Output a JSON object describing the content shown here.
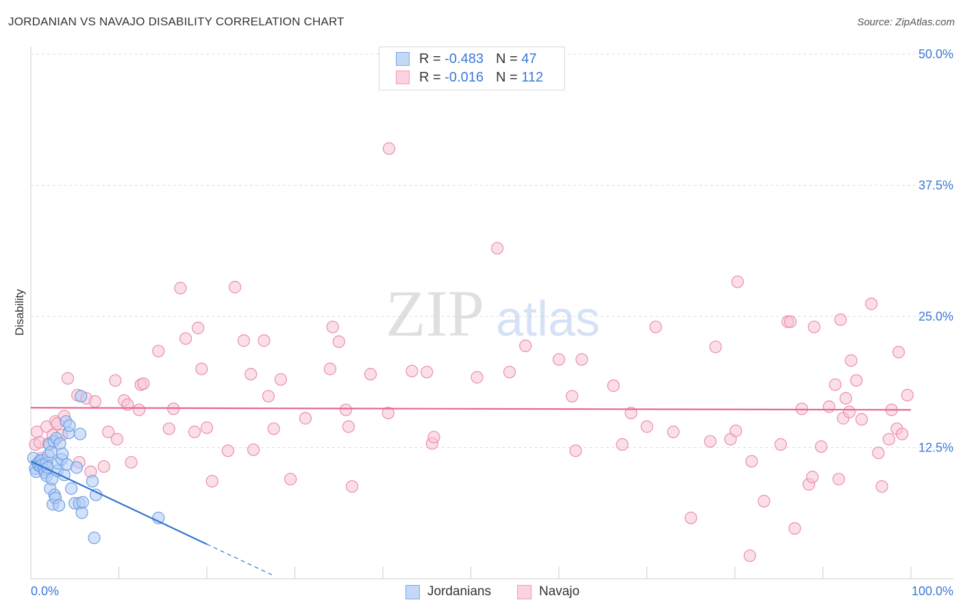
{
  "header": {
    "title": "JORDANIAN VS NAVAJO DISABILITY CORRELATION CHART",
    "source": "Source: ZipAtlas.com"
  },
  "legend": {
    "rows": [
      {
        "r_label": "R =",
        "r_value": "-0.483",
        "n_label": "N =",
        "n_value": "47",
        "color": "#8ab4f0"
      },
      {
        "r_label": "R =",
        "r_value": "-0.016",
        "n_label": "N =",
        "n_value": "112",
        "color": "#f4a6c0"
      }
    ]
  },
  "bottom_legend": {
    "items": [
      {
        "label": "Jordanians",
        "color": "#8ab4f0"
      },
      {
        "label": "Navajo",
        "color": "#f4a6c0"
      }
    ]
  },
  "watermark": {
    "zip": "ZIP",
    "atlas": "atlas"
  },
  "colors": {
    "blue_fill": "#aecbf5",
    "blue_stroke": "#6f9fe0",
    "blue_line": "#2e72d2",
    "pink_fill": "#f8c4d5",
    "pink_stroke": "#eb8cab",
    "pink_line": "#e8648e",
    "axis_label": "#3a78d8",
    "grid": "#dddddd"
  },
  "chart_data": {
    "type": "scatter",
    "title": "JORDANIAN VS NAVAJO DISABILITY CORRELATION CHART",
    "xlabel": "",
    "ylabel": "Disability",
    "xlim": [
      0,
      100
    ],
    "ylim": [
      0,
      50
    ],
    "x_tick_labels": [
      "0.0%",
      "100.0%"
    ],
    "y_tick_labels": [
      "12.5%",
      "25.0%",
      "37.5%",
      "50.0%"
    ],
    "y_ticks": [
      12.5,
      25.0,
      37.5,
      50.0
    ],
    "grid": true,
    "legend_position": "top-center",
    "series": [
      {
        "name": "Jordanians",
        "r": -0.483,
        "n": 47,
        "trend": {
          "x0": 0,
          "y0": 11.2,
          "x1": 20,
          "y1": 3.3,
          "dash_to_x": 27.5
        },
        "points": [
          [
            0.3,
            11.5
          ],
          [
            0.5,
            10.5
          ],
          [
            0.6,
            10.2
          ],
          [
            0.8,
            11.0
          ],
          [
            0.9,
            10.8
          ],
          [
            1.0,
            11.2
          ],
          [
            1.1,
            10.7
          ],
          [
            1.2,
            11.3
          ],
          [
            1.3,
            10.9
          ],
          [
            1.5,
            10.4
          ],
          [
            1.6,
            10.1
          ],
          [
            1.7,
            11.0
          ],
          [
            1.8,
            9.8
          ],
          [
            1.9,
            10.6
          ],
          [
            2.0,
            11.8
          ],
          [
            2.1,
            12.8
          ],
          [
            2.2,
            8.6
          ],
          [
            2.3,
            12.1
          ],
          [
            2.4,
            9.5
          ],
          [
            2.5,
            7.1
          ],
          [
            2.6,
            13.1
          ],
          [
            2.7,
            8.0
          ],
          [
            2.8,
            7.7
          ],
          [
            2.9,
            13.4
          ],
          [
            3.0,
            10.3
          ],
          [
            3.1,
            11.0
          ],
          [
            3.2,
            7.0
          ],
          [
            3.3,
            12.9
          ],
          [
            3.5,
            11.4
          ],
          [
            3.6,
            11.9
          ],
          [
            3.8,
            9.9
          ],
          [
            4.0,
            15.0
          ],
          [
            4.1,
            10.9
          ],
          [
            4.3,
            13.9
          ],
          [
            4.4,
            14.6
          ],
          [
            4.6,
            8.6
          ],
          [
            5.0,
            7.2
          ],
          [
            5.2,
            10.6
          ],
          [
            5.5,
            7.2
          ],
          [
            5.6,
            13.8
          ],
          [
            5.7,
            17.4
          ],
          [
            5.8,
            6.3
          ],
          [
            5.9,
            7.3
          ],
          [
            7.0,
            9.3
          ],
          [
            7.2,
            3.9
          ],
          [
            7.4,
            8.0
          ],
          [
            14.5,
            5.8
          ]
        ]
      },
      {
        "name": "Navajo",
        "r": -0.016,
        "n": 112,
        "trend": {
          "x0": 0,
          "y0": 16.3,
          "x1": 100,
          "y1": 16.1
        },
        "points": [
          [
            0.5,
            12.8
          ],
          [
            0.7,
            14.0
          ],
          [
            1.0,
            13.0
          ],
          [
            1.2,
            11.5
          ],
          [
            1.8,
            14.5
          ],
          [
            2.0,
            12.9
          ],
          [
            2.5,
            13.7
          ],
          [
            2.8,
            15.0
          ],
          [
            3.0,
            14.8
          ],
          [
            3.5,
            13.7
          ],
          [
            3.8,
            15.5
          ],
          [
            4.2,
            19.1
          ],
          [
            5.3,
            17.5
          ],
          [
            5.5,
            11.1
          ],
          [
            6.3,
            17.2
          ],
          [
            6.8,
            10.2
          ],
          [
            7.3,
            16.9
          ],
          [
            8.3,
            10.7
          ],
          [
            8.8,
            14.0
          ],
          [
            9.6,
            18.9
          ],
          [
            9.8,
            13.3
          ],
          [
            10.6,
            17.0
          ],
          [
            11.0,
            16.6
          ],
          [
            11.4,
            11.1
          ],
          [
            12.3,
            16.1
          ],
          [
            12.5,
            18.5
          ],
          [
            12.8,
            18.6
          ],
          [
            14.5,
            21.7
          ],
          [
            15.7,
            14.3
          ],
          [
            16.2,
            16.2
          ],
          [
            17.0,
            27.7
          ],
          [
            17.6,
            22.9
          ],
          [
            18.6,
            14.0
          ],
          [
            19.0,
            23.9
          ],
          [
            19.4,
            20.0
          ],
          [
            20.0,
            14.4
          ],
          [
            20.6,
            9.3
          ],
          [
            22.4,
            12.2
          ],
          [
            23.2,
            27.8
          ],
          [
            24.2,
            22.7
          ],
          [
            25.0,
            19.5
          ],
          [
            25.3,
            12.3
          ],
          [
            26.5,
            22.7
          ],
          [
            27.0,
            17.4
          ],
          [
            27.6,
            14.3
          ],
          [
            28.4,
            19.0
          ],
          [
            29.5,
            9.5
          ],
          [
            31.2,
            15.3
          ],
          [
            34.0,
            20.0
          ],
          [
            34.3,
            24.0
          ],
          [
            35.0,
            22.6
          ],
          [
            35.8,
            16.1
          ],
          [
            36.1,
            14.5
          ],
          [
            36.5,
            8.8
          ],
          [
            38.6,
            19.5
          ],
          [
            40.6,
            15.8
          ],
          [
            40.7,
            41.0
          ],
          [
            43.3,
            19.8
          ],
          [
            45.0,
            19.7
          ],
          [
            45.6,
            12.9
          ],
          [
            45.8,
            13.5
          ],
          [
            50.7,
            19.2
          ],
          [
            53.0,
            31.5
          ],
          [
            54.4,
            19.7
          ],
          [
            56.2,
            22.2
          ],
          [
            60.0,
            20.9
          ],
          [
            61.5,
            17.4
          ],
          [
            61.9,
            12.2
          ],
          [
            62.6,
            20.9
          ],
          [
            66.2,
            18.4
          ],
          [
            67.2,
            12.8
          ],
          [
            68.2,
            15.8
          ],
          [
            70.0,
            14.5
          ],
          [
            71.0,
            24.0
          ],
          [
            73.0,
            14.0
          ],
          [
            75.0,
            5.8
          ],
          [
            77.2,
            13.1
          ],
          [
            77.8,
            22.1
          ],
          [
            79.5,
            13.3
          ],
          [
            80.1,
            14.1
          ],
          [
            80.3,
            28.3
          ],
          [
            81.7,
            2.2
          ],
          [
            81.9,
            11.2
          ],
          [
            83.3,
            7.4
          ],
          [
            85.2,
            12.8
          ],
          [
            86.0,
            24.5
          ],
          [
            86.3,
            24.5
          ],
          [
            86.8,
            4.8
          ],
          [
            87.6,
            16.2
          ],
          [
            88.4,
            9.0
          ],
          [
            88.8,
            9.7
          ],
          [
            89.0,
            24.0
          ],
          [
            89.8,
            12.6
          ],
          [
            90.7,
            16.4
          ],
          [
            91.4,
            18.5
          ],
          [
            91.8,
            9.5
          ],
          [
            92.0,
            24.7
          ],
          [
            92.3,
            15.3
          ],
          [
            92.6,
            17.2
          ],
          [
            93.0,
            15.9
          ],
          [
            93.2,
            20.8
          ],
          [
            93.8,
            18.9
          ],
          [
            94.4,
            15.2
          ],
          [
            95.5,
            26.2
          ],
          [
            96.3,
            12.0
          ],
          [
            96.7,
            8.8
          ],
          [
            97.5,
            13.3
          ],
          [
            97.8,
            16.1
          ],
          [
            98.4,
            14.3
          ],
          [
            98.6,
            21.6
          ],
          [
            99.0,
            13.8
          ],
          [
            99.6,
            17.5
          ]
        ]
      }
    ]
  }
}
